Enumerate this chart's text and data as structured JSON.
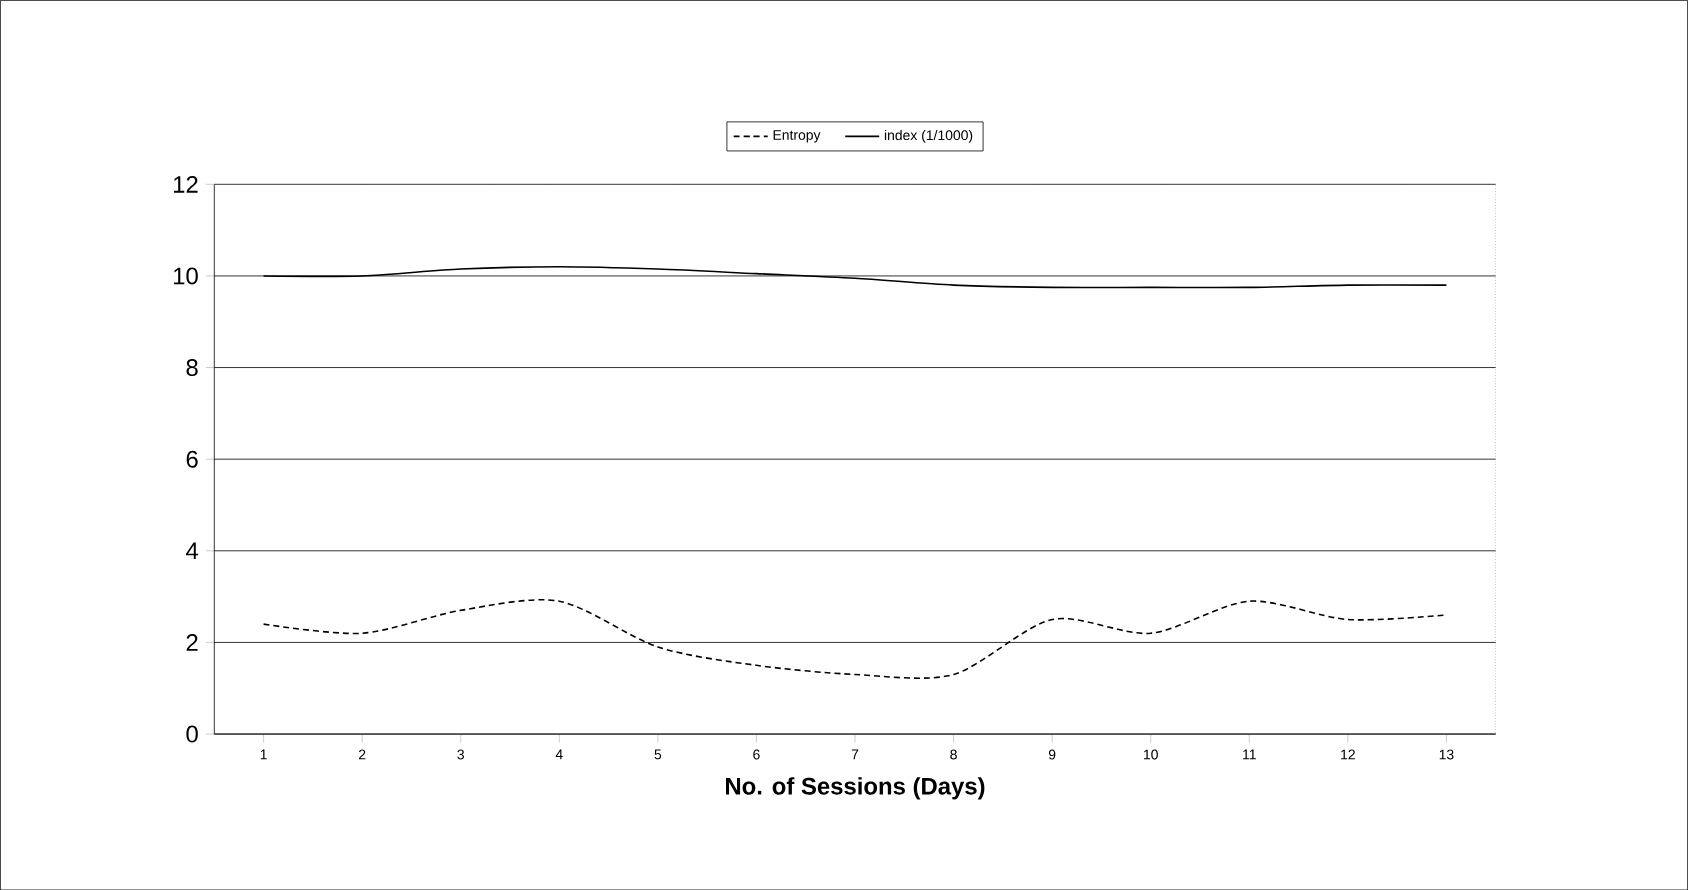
{
  "chart_data": {
    "type": "line",
    "xlabel": "No. of Sessions (Days)",
    "categories": [
      "1",
      "2",
      "3",
      "4",
      "5",
      "6",
      "7",
      "8",
      "9",
      "10",
      "11",
      "12",
      "13"
    ],
    "series": [
      {
        "name": "Entropy",
        "color": "#000000",
        "line_style": "dashed",
        "values": [
          2.4,
          2.2,
          2.7,
          2.9,
          1.9,
          1.5,
          1.3,
          1.3,
          2.5,
          2.2,
          2.9,
          2.5,
          2.6
        ]
      },
      {
        "name": "index (1/1000)",
        "color": "#000000",
        "line_style": "solid",
        "values": [
          10.0,
          10.0,
          10.15,
          10.2,
          10.15,
          10.05,
          9.95,
          9.8,
          9.75,
          9.75,
          9.75,
          9.8,
          9.8
        ]
      }
    ],
    "ylim": [
      0,
      12
    ],
    "yticks": [
      0,
      2,
      4,
      6,
      8,
      10,
      12
    ],
    "grid": "y",
    "legend": "top",
    "marker": "none"
  }
}
